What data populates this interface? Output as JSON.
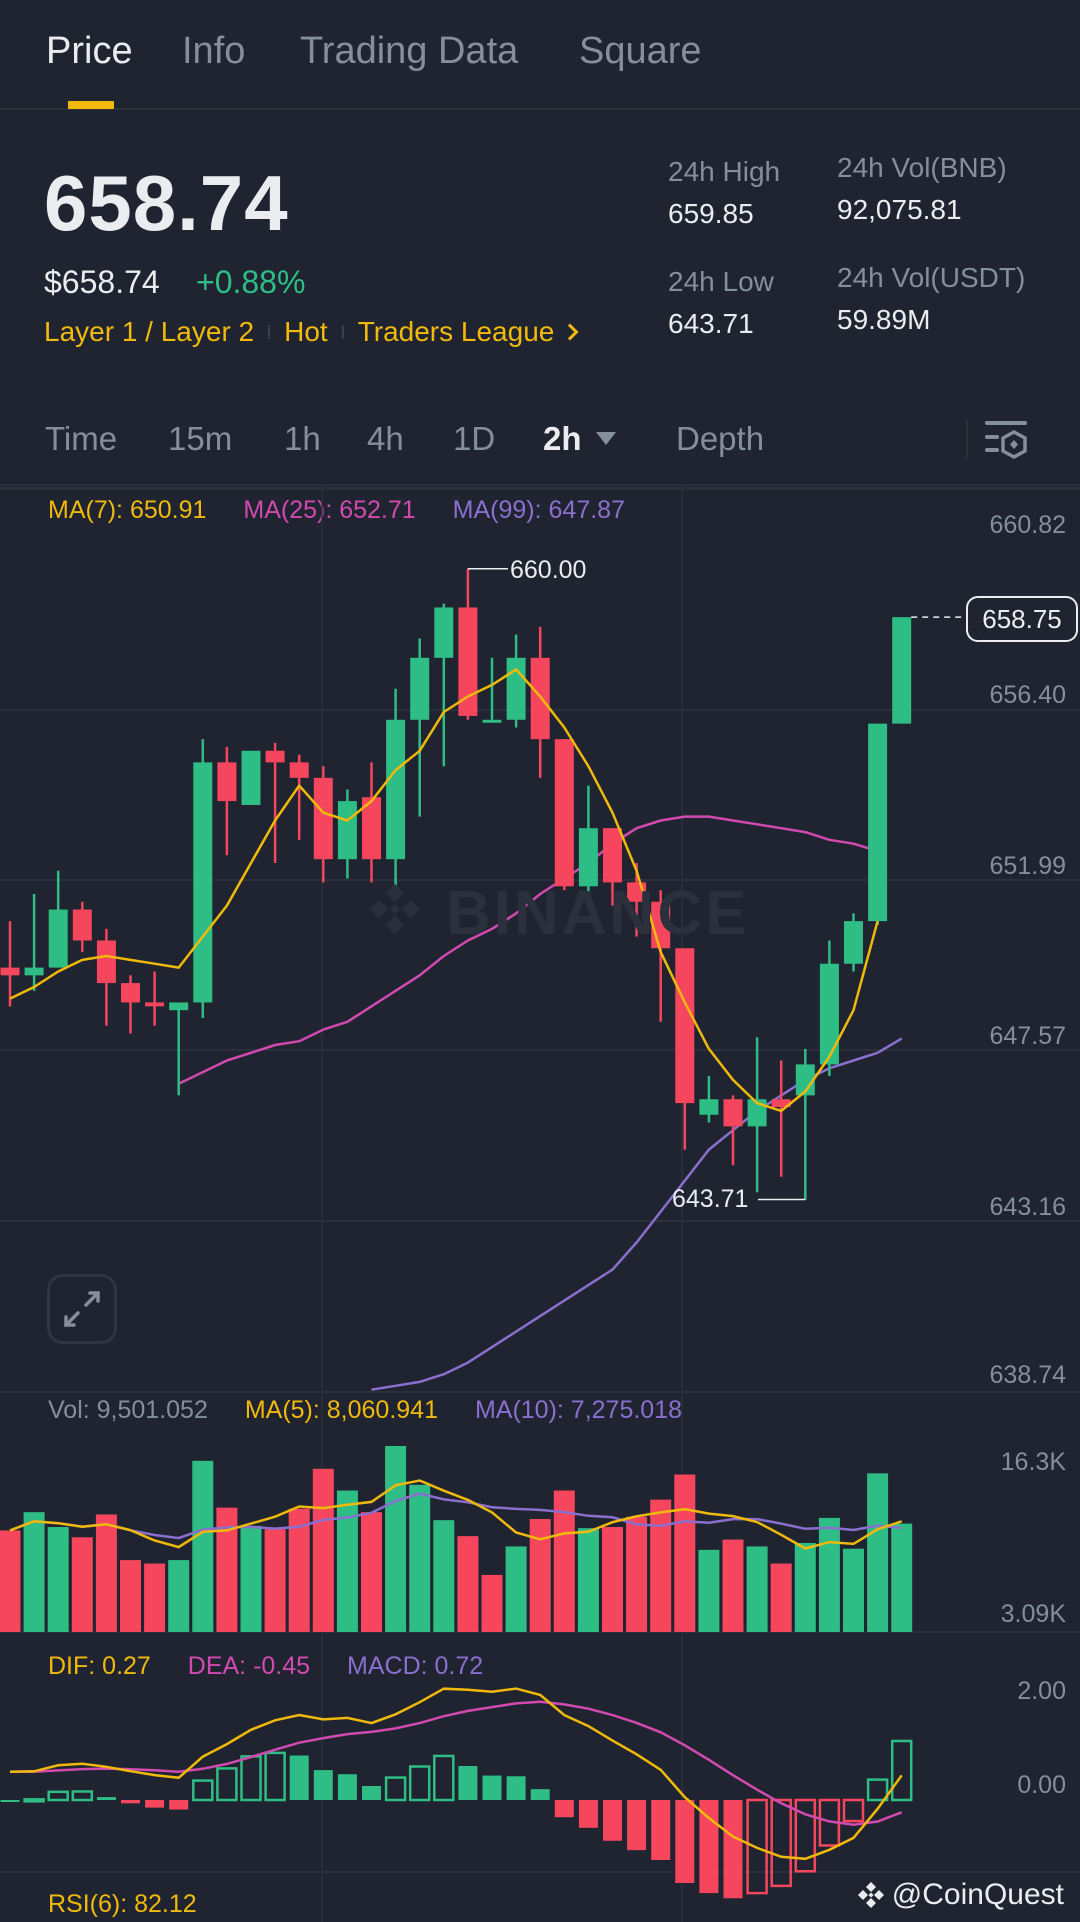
{
  "tabs": [
    {
      "label": "Price",
      "active": true
    },
    {
      "label": "Info",
      "active": false
    },
    {
      "label": "Trading Data",
      "active": false
    },
    {
      "label": "Square",
      "active": false
    }
  ],
  "ticker": {
    "last_price": "658.74",
    "usd_price": "$658.74",
    "change_pct": "+0.88%",
    "tags": [
      "Layer 1 / Layer 2",
      "Hot",
      "Traders League"
    ],
    "stats": {
      "high_label": "24h High",
      "high_value": "659.85",
      "low_label": "24h Low",
      "low_value": "643.71",
      "vol_base_label": "24h Vol(BNB)",
      "vol_base_value": "92,075.81",
      "vol_quote_label": "24h Vol(USDT)",
      "vol_quote_value": "59.89M"
    }
  },
  "intervals": {
    "items": [
      "Time",
      "15m",
      "1h",
      "4h",
      "1D",
      "2h",
      "Depth"
    ],
    "active": "2h",
    "settings_icon": "chart-settings-icon"
  },
  "main_chart": {
    "ma7": "MA(7): 650.91",
    "ma25": "MA(25): 652.71",
    "ma99": "MA(99): 647.87",
    "axis": [
      "660.82",
      "656.40",
      "651.99",
      "647.57",
      "643.16",
      "638.74"
    ],
    "last_price_tag": "658.75",
    "high_marker": "660.00",
    "low_marker": "643.71",
    "watermark": "BINANCE"
  },
  "volume_chart": {
    "vol": "Vol: 9,501.052",
    "ma5": "MA(5): 8,060.941",
    "ma10": "MA(10): 7,275.018",
    "axis": [
      "16.3K",
      "3.09K"
    ]
  },
  "macd_chart": {
    "dif": "DIF: 0.27",
    "dea": "DEA: -0.45",
    "macd": "MACD: 0.72",
    "axis": [
      "2.00",
      "0.00"
    ]
  },
  "rsi": {
    "label": "RSI(6): 82.12"
  },
  "credit": "@CoinQuest",
  "colors": {
    "up": "#2ebd85",
    "down": "#f6465d",
    "accent": "#f0b90b",
    "ma7": "#f0b90b",
    "ma25": "#d24ab0",
    "ma99": "#8b6fcf",
    "background": "#1f2430"
  },
  "chart_data": {
    "type": "candlestick",
    "title": "BNB/USDT 2h",
    "ylim": [
      638.74,
      660.82
    ],
    "y_ticks": [
      660.82,
      656.4,
      651.99,
      647.57,
      643.16,
      638.74
    ],
    "candles": [
      {
        "o": 649.7,
        "h": 650.9,
        "l": 648.7,
        "c": 649.5
      },
      {
        "o": 649.5,
        "h": 651.6,
        "l": 649.1,
        "c": 649.7
      },
      {
        "o": 649.7,
        "h": 652.2,
        "l": 649.7,
        "c": 651.2
      },
      {
        "o": 651.2,
        "h": 651.4,
        "l": 650.1,
        "c": 650.4
      },
      {
        "o": 650.4,
        "h": 650.7,
        "l": 648.2,
        "c": 649.3
      },
      {
        "o": 649.3,
        "h": 649.5,
        "l": 648.0,
        "c": 648.8
      },
      {
        "o": 648.8,
        "h": 649.6,
        "l": 648.2,
        "c": 648.7
      },
      {
        "o": 648.6,
        "h": 648.8,
        "l": 646.4,
        "c": 648.8
      },
      {
        "o": 648.8,
        "h": 655.6,
        "l": 648.4,
        "c": 655.0
      },
      {
        "o": 655.0,
        "h": 655.4,
        "l": 652.6,
        "c": 654.0
      },
      {
        "o": 653.9,
        "h": 654.9,
        "l": 653.9,
        "c": 655.3
      },
      {
        "o": 655.3,
        "h": 655.5,
        "l": 652.4,
        "c": 655.0
      },
      {
        "o": 655.0,
        "h": 655.2,
        "l": 653.0,
        "c": 654.6
      },
      {
        "o": 654.6,
        "h": 654.9,
        "l": 651.9,
        "c": 652.5
      },
      {
        "o": 652.5,
        "h": 654.3,
        "l": 652.0,
        "c": 654.0
      },
      {
        "o": 654.1,
        "h": 655.0,
        "l": 651.9,
        "c": 652.5
      },
      {
        "o": 652.5,
        "h": 656.9,
        "l": 651.6,
        "c": 656.1
      },
      {
        "o": 656.1,
        "h": 658.2,
        "l": 653.6,
        "c": 657.7
      },
      {
        "o": 657.7,
        "h": 659.1,
        "l": 654.9,
        "c": 659.0
      },
      {
        "o": 659.0,
        "h": 660.0,
        "l": 656.1,
        "c": 656.2
      },
      {
        "o": 656.1,
        "h": 657.7,
        "l": 656.1,
        "c": 656.1
      },
      {
        "o": 656.1,
        "h": 658.3,
        "l": 655.9,
        "c": 657.7
      },
      {
        "o": 657.7,
        "h": 658.5,
        "l": 654.6,
        "c": 655.6
      },
      {
        "o": 655.6,
        "h": 655.6,
        "l": 651.7,
        "c": 651.8
      },
      {
        "o": 651.8,
        "h": 654.4,
        "l": 651.5,
        "c": 653.3
      },
      {
        "o": 653.3,
        "h": 653.3,
        "l": 651.3,
        "c": 651.9
      },
      {
        "o": 651.9,
        "h": 652.4,
        "l": 650.5,
        "c": 651.4
      },
      {
        "o": 651.4,
        "h": 651.7,
        "l": 648.3,
        "c": 650.2
      },
      {
        "o": 650.2,
        "h": 650.2,
        "l": 645.0,
        "c": 646.2
      },
      {
        "o": 645.9,
        "h": 646.9,
        "l": 645.7,
        "c": 646.3
      },
      {
        "o": 646.3,
        "h": 646.4,
        "l": 644.6,
        "c": 645.6
      },
      {
        "o": 645.6,
        "h": 647.9,
        "l": 643.9,
        "c": 646.3
      },
      {
        "o": 646.3,
        "h": 647.3,
        "l": 644.3,
        "c": 646.1
      },
      {
        "o": 646.4,
        "h": 647.6,
        "l": 643.7,
        "c": 647.2
      },
      {
        "o": 647.2,
        "h": 650.4,
        "l": 646.9,
        "c": 649.8
      },
      {
        "o": 649.8,
        "h": 651.1,
        "l": 649.6,
        "c": 650.9
      },
      {
        "o": 650.9,
        "h": 656.0,
        "l": 650.8,
        "c": 656.0
      },
      {
        "o": 656.0,
        "h": 658.6,
        "l": 656.0,
        "c": 658.75
      }
    ],
    "ma7": [
      648.9,
      649.2,
      649.6,
      649.9,
      650.0,
      649.9,
      649.8,
      649.7,
      650.5,
      651.3,
      652.4,
      653.5,
      654.4,
      653.7,
      653.5,
      654.0,
      654.8,
      655.3,
      656.3,
      656.7,
      657.0,
      657.4,
      656.7,
      655.9,
      654.9,
      653.7,
      652.2,
      650.1,
      648.8,
      647.6,
      646.8,
      646.2,
      646.0,
      646.5,
      647.4,
      648.6,
      650.9
    ],
    "ma25": [
      646.7,
      647.0,
      647.3,
      647.5,
      647.7,
      647.8,
      648.1,
      648.3,
      648.7,
      649.1,
      649.5,
      650.0,
      650.4,
      650.7,
      651.1,
      651.6,
      652.0,
      652.4,
      652.9,
      653.3,
      653.5,
      653.6,
      653.6,
      653.5,
      653.4,
      653.3,
      653.2,
      653.0,
      652.9,
      652.71
    ],
    "ma99": [
      638.8,
      638.9,
      639.0,
      639.2,
      639.5,
      639.9,
      640.3,
      640.7,
      641.1,
      641.5,
      641.9,
      642.6,
      643.4,
      644.2,
      645.0,
      645.5,
      646.0,
      646.4,
      646.8,
      647.1,
      647.3,
      647.5,
      647.87
    ],
    "volume": {
      "ylim": [
        3090,
        16300
      ],
      "bars": [
        {
          "v": 8900,
          "up": false
        },
        {
          "v": 10500,
          "up": true
        },
        {
          "v": 9200,
          "up": true
        },
        {
          "v": 8300,
          "up": false
        },
        {
          "v": 10300,
          "up": false
        },
        {
          "v": 6300,
          "up": false
        },
        {
          "v": 6000,
          "up": false
        },
        {
          "v": 6300,
          "up": true
        },
        {
          "v": 15000,
          "up": true
        },
        {
          "v": 10900,
          "up": false
        },
        {
          "v": 9300,
          "up": true
        },
        {
          "v": 9000,
          "up": false
        },
        {
          "v": 10800,
          "up": false
        },
        {
          "v": 14300,
          "up": false
        },
        {
          "v": 12400,
          "up": true
        },
        {
          "v": 10500,
          "up": false
        },
        {
          "v": 16300,
          "up": true
        },
        {
          "v": 12900,
          "up": true
        },
        {
          "v": 9800,
          "up": true
        },
        {
          "v": 8400,
          "up": false
        },
        {
          "v": 5000,
          "up": false
        },
        {
          "v": 7500,
          "up": true
        },
        {
          "v": 9900,
          "up": false
        },
        {
          "v": 12400,
          "up": false
        },
        {
          "v": 9100,
          "up": true
        },
        {
          "v": 9200,
          "up": false
        },
        {
          "v": 10100,
          "up": false
        },
        {
          "v": 11600,
          "up": false
        },
        {
          "v": 13800,
          "up": false
        },
        {
          "v": 7200,
          "up": true
        },
        {
          "v": 8100,
          "up": false
        },
        {
          "v": 7500,
          "up": true
        },
        {
          "v": 6000,
          "up": false
        },
        {
          "v": 7800,
          "up": true
        },
        {
          "v": 10000,
          "up": true
        },
        {
          "v": 7300,
          "up": true
        },
        {
          "v": 13900,
          "up": true
        },
        {
          "v": 9501,
          "up": true
        }
      ]
    },
    "macd": {
      "ylim": [
        -2.3,
        2.5
      ],
      "y_ticks": [
        2.0,
        0.0
      ]
    }
  }
}
